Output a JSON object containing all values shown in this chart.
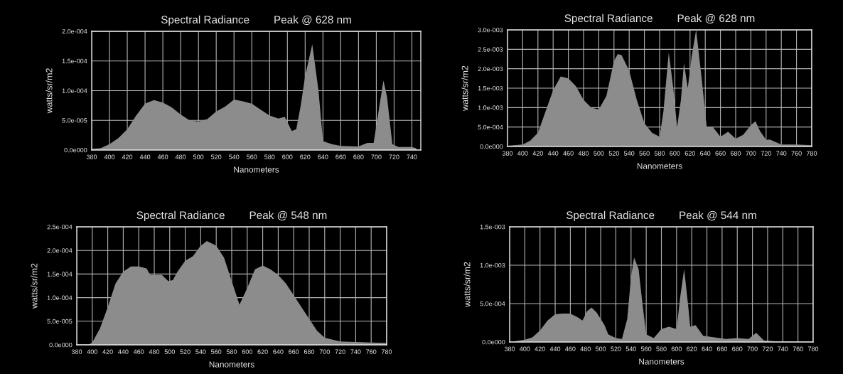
{
  "chart_data": [
    {
      "type": "area",
      "title": "Spectral Radiance        Peak @ 628 nm",
      "xlabel": "Nanometers",
      "ylabel": "watts/sr/m2",
      "xlim": [
        380,
        750
      ],
      "xticks": [
        380,
        400,
        420,
        440,
        460,
        480,
        500,
        520,
        540,
        560,
        580,
        600,
        620,
        640,
        660,
        680,
        700,
        720,
        740
      ],
      "ylim": [
        0,
        0.0002
      ],
      "yticks": [
        {
          "value": 0,
          "label": "0.0e000"
        },
        {
          "value": 5e-05,
          "label": "5.0e-005"
        },
        {
          "value": 0.0001,
          "label": "1.0e-004"
        },
        {
          "value": 0.00015,
          "label": "1.5e-004"
        },
        {
          "value": 0.0002,
          "label": "2.0e-004"
        }
      ],
      "grid": true,
      "series": [
        {
          "color": "#8c8c8c",
          "x": [
            380,
            390,
            400,
            410,
            420,
            430,
            440,
            450,
            460,
            470,
            480,
            490,
            500,
            510,
            520,
            530,
            540,
            550,
            560,
            570,
            580,
            590,
            597,
            605,
            610,
            615,
            620,
            628,
            635,
            640,
            650,
            660,
            680,
            690,
            697,
            702,
            708,
            712,
            718,
            725,
            740,
            745
          ],
          "values": [
            2e-06,
            3e-06,
            1e-05,
            2e-05,
            3.5e-05,
            5.8e-05,
            7.8e-05,
            8.4e-05,
            8e-05,
            7.2e-05,
            6e-05,
            5e-05,
            4.8e-05,
            5.2e-05,
            6.5e-05,
            7.3e-05,
            8.5e-05,
            8.2e-05,
            7.8e-05,
            6.8e-05,
            5.8e-05,
            5.3e-05,
            5.6e-05,
            3.2e-05,
            3.5e-05,
            7.5e-05,
            0.000125,
            0.000178,
            0.0001,
            1.5e-05,
            1e-05,
            7e-06,
            6e-06,
            1.2e-05,
            1.2e-05,
            6e-05,
            0.000117,
            9e-05,
            1e-05,
            5e-06,
            5e-06,
            3e-06
          ]
        }
      ]
    },
    {
      "type": "area",
      "title": "Spectral Radiance        Peak @ 628 nm",
      "xlabel": "Nanometers",
      "ylabel": "watts/sr/m2",
      "xlim": [
        380,
        780
      ],
      "xticks": [
        380,
        400,
        420,
        440,
        460,
        480,
        500,
        520,
        540,
        560,
        580,
        600,
        620,
        640,
        660,
        680,
        700,
        720,
        740,
        760,
        780
      ],
      "ylim": [
        0,
        0.003
      ],
      "yticks": [
        {
          "value": 0,
          "label": "0.0e000"
        },
        {
          "value": 0.0005,
          "label": "5.0e-004"
        },
        {
          "value": 0.001,
          "label": "1.0e-003"
        },
        {
          "value": 0.0015,
          "label": "1.5e-003"
        },
        {
          "value": 0.002,
          "label": "2.0e-003"
        },
        {
          "value": 0.0025,
          "label": "2.5e-003"
        },
        {
          "value": 0.003,
          "label": "3.0e-003"
        }
      ],
      "grid": true,
      "series": [
        {
          "color": "#8c8c8c",
          "x": [
            380,
            400,
            410,
            420,
            430,
            440,
            450,
            460,
            470,
            480,
            490,
            500,
            510,
            520,
            525,
            530,
            540,
            550,
            560,
            570,
            580,
            585,
            592,
            598,
            603,
            608,
            612,
            617,
            622,
            628,
            635,
            642,
            650,
            660,
            670,
            680,
            690,
            700,
            706,
            712,
            720,
            725,
            740,
            760,
            780
          ],
          "values": [
            2e-05,
            5e-05,
            0.00015,
            0.00035,
            0.0009,
            0.00145,
            0.0018,
            0.00175,
            0.00155,
            0.0012,
            0.001,
            0.00095,
            0.0013,
            0.0022,
            0.00238,
            0.00235,
            0.00195,
            0.0012,
            0.0006,
            0.00035,
            0.00025,
            0.0009,
            0.00242,
            0.0015,
            0.0005,
            0.0012,
            0.00215,
            0.0015,
            0.0023,
            0.003,
            0.0018,
            0.0005,
            0.0005,
            0.00025,
            0.00038,
            0.0002,
            0.0003,
            0.00055,
            0.00065,
            0.0004,
            0.00017,
            0.00018,
            5e-05,
            5e-05,
            3e-05
          ]
        }
      ]
    },
    {
      "type": "area",
      "title": "Spectral Radiance        Peak @ 548 nm",
      "xlabel": "Nanometers",
      "ylabel": "watts/sr/m2",
      "xlim": [
        380,
        780
      ],
      "xticks": [
        380,
        400,
        420,
        440,
        460,
        480,
        500,
        520,
        540,
        560,
        580,
        600,
        620,
        640,
        660,
        680,
        700,
        720,
        740,
        760,
        780
      ],
      "ylim": [
        0,
        0.00025
      ],
      "yticks": [
        {
          "value": 0,
          "label": "0.0e000"
        },
        {
          "value": 5e-05,
          "label": "5.0e-005"
        },
        {
          "value": 0.0001,
          "label": "1.0e-004"
        },
        {
          "value": 0.00015,
          "label": "1.5e-004"
        },
        {
          "value": 0.0002,
          "label": "2.0e-004"
        },
        {
          "value": 0.00025,
          "label": "2.5e-004"
        }
      ],
      "grid": true,
      "series": [
        {
          "color": "#8c8c8c",
          "x": [
            395,
            400,
            410,
            420,
            430,
            440,
            450,
            460,
            470,
            475,
            490,
            498,
            504,
            510,
            520,
            530,
            540,
            548,
            560,
            570,
            580,
            590,
            600,
            610,
            620,
            630,
            640,
            650,
            660,
            670,
            680,
            690,
            700,
            720,
            740,
            760,
            780
          ],
          "values": [
            0,
            5e-06,
            3.5e-05,
            8e-05,
            0.00013,
            0.000155,
            0.000166,
            0.000166,
            0.000162,
            0.000148,
            0.000148,
            0.000135,
            0.000137,
            0.000155,
            0.000178,
            0.000188,
            0.00021,
            0.00022,
            0.00021,
            0.000185,
            0.000135,
            8.5e-05,
            0.00012,
            0.00016,
            0.000168,
            0.00016,
            0.000148,
            0.00013,
            0.000105,
            8e-05,
            5.5e-05,
            3e-05,
            1.5e-05,
            7e-06,
            6e-06,
            5e-06,
            4e-06
          ]
        }
      ]
    },
    {
      "type": "area",
      "title": "Spectral Radiance        Peak @ 544 nm",
      "xlabel": "Nanometers",
      "ylabel": "watts/sr/m2",
      "xlim": [
        380,
        780
      ],
      "xticks": [
        380,
        400,
        420,
        440,
        460,
        480,
        500,
        520,
        540,
        560,
        580,
        600,
        620,
        640,
        660,
        680,
        700,
        720,
        740,
        760,
        780
      ],
      "ylim": [
        0,
        0.0015
      ],
      "yticks": [
        {
          "value": 0,
          "label": "0.0e000"
        },
        {
          "value": 0.0005,
          "label": "5.0e-004"
        },
        {
          "value": 0.001,
          "label": "1.0e-003"
        },
        {
          "value": 0.0015,
          "label": "1.5e-003"
        }
      ],
      "grid": true,
      "series": [
        {
          "color": "#8c8c8c",
          "x": [
            380,
            400,
            410,
            420,
            430,
            440,
            450,
            460,
            470,
            476,
            482,
            488,
            495,
            505,
            510,
            520,
            528,
            535,
            540,
            544,
            550,
            555,
            560,
            570,
            580,
            590,
            600,
            605,
            610,
            615,
            618,
            625,
            635,
            650,
            665,
            680,
            695,
            705,
            715,
            730,
            760,
            780
          ],
          "values": [
            0,
            3e-05,
            6e-05,
            0.00015,
            0.00028,
            0.00036,
            0.00037,
            0.00037,
            0.00032,
            0.00028,
            0.0004,
            0.00045,
            0.00038,
            0.00022,
            0.0001,
            5e-05,
            4e-05,
            0.0003,
            0.00085,
            0.0011,
            0.00095,
            0.0005,
            0.0001,
            5e-05,
            0.00017,
            0.0002,
            0.00017,
            0.0006,
            0.00095,
            0.0005,
            0.0002,
            0.00022,
            8e-05,
            6e-05,
            4e-05,
            5e-05,
            4e-05,
            0.00012,
            2e-05,
            1e-05,
            1e-05,
            5e-06
          ]
        }
      ]
    }
  ]
}
